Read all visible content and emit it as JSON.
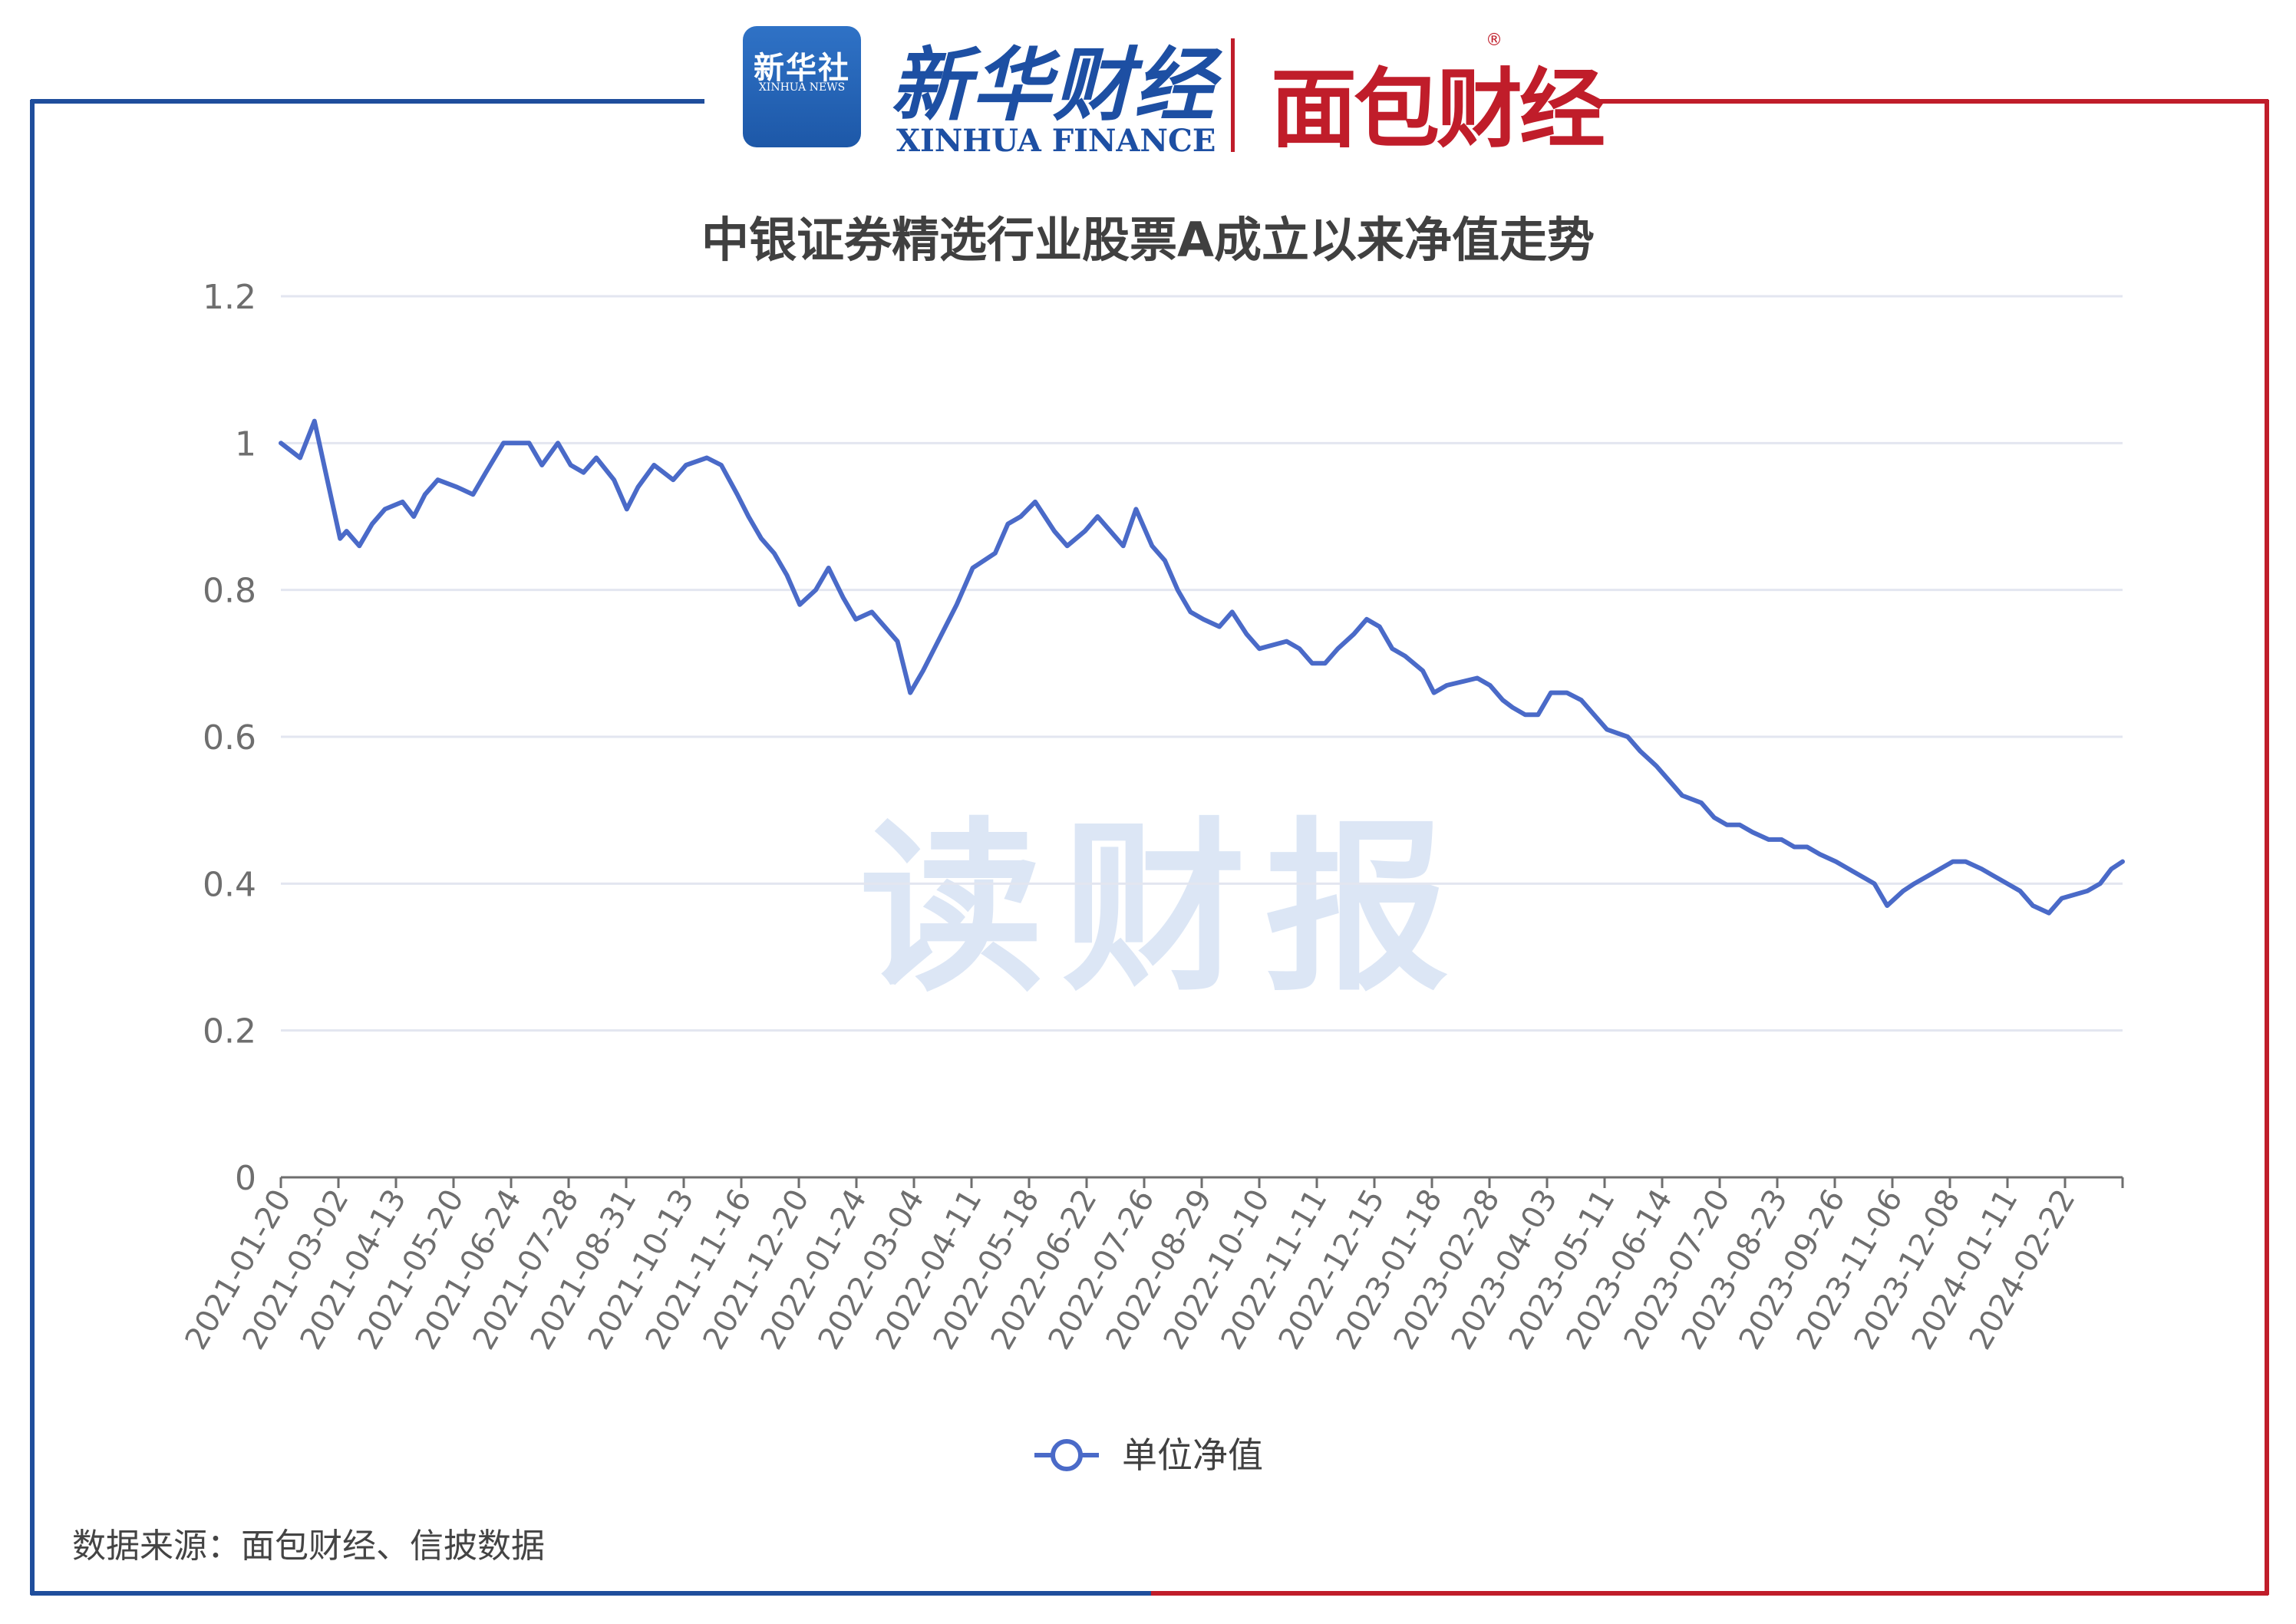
{
  "header": {
    "logo1_cn": "新华社",
    "logo1_en": "XINHUA NEWS",
    "brand1_cn": "新华财经",
    "brand1_en": "XINHUA FINANCE",
    "brand2": "面包财经",
    "brand2_reg": "®"
  },
  "watermark": "读财报",
  "source": "数据来源：面包财经、信披数据",
  "colors": {
    "line": "#4a6ac8",
    "frame_blue": "#1f4e9c",
    "frame_red": "#c01d2a",
    "grid": "#e3e6f0"
  },
  "chart_data": {
    "type": "line",
    "title": "中银证券精选行业股票A成立以来净值走势",
    "xlabel": "",
    "ylabel": "",
    "ylim": [
      0,
      1.2
    ],
    "yticks": [
      "0",
      "0.2",
      "0.4",
      "0.6",
      "0.8",
      "1",
      "1.2"
    ],
    "grid": true,
    "legend": {
      "position": "bottom-center",
      "marker": "circle"
    },
    "x_tick_labels": [
      "2021-01-20",
      "2021-03-02",
      "2021-04-13",
      "2021-05-20",
      "2021-06-24",
      "2021-07-28",
      "2021-08-31",
      "2021-10-13",
      "2021-11-16",
      "2021-12-20",
      "2022-01-24",
      "2022-03-04",
      "2022-04-11",
      "2022-05-18",
      "2022-06-22",
      "2022-07-26",
      "2022-08-29",
      "2022-10-10",
      "2022-11-11",
      "2022-12-15",
      "2023-01-18",
      "2023-02-28",
      "2023-04-03",
      "2023-05-11",
      "2023-06-14",
      "2023-07-20",
      "2023-08-23",
      "2023-09-26",
      "2023-11-06",
      "2023-12-08",
      "2024-01-11",
      "2024-02-22"
    ],
    "series": [
      {
        "name": "单位净值",
        "x": [
          "2021-01-20",
          "2021-02-01",
          "2021-02-10",
          "2021-02-18",
          "2021-02-26",
          "2021-03-02",
          "2021-03-10",
          "2021-03-18",
          "2021-03-26",
          "2021-04-06",
          "2021-04-13",
          "2021-04-20",
          "2021-04-28",
          "2021-05-10",
          "2021-05-20",
          "2021-05-28",
          "2021-06-08",
          "2021-06-16",
          "2021-06-24",
          "2021-07-02",
          "2021-07-12",
          "2021-07-20",
          "2021-07-28",
          "2021-08-05",
          "2021-08-16",
          "2021-08-24",
          "2021-08-31",
          "2021-09-10",
          "2021-09-22",
          "2021-09-30",
          "2021-10-13",
          "2021-10-22",
          "2021-11-01",
          "2021-11-08",
          "2021-11-16",
          "2021-11-24",
          "2021-12-02",
          "2021-12-10",
          "2021-12-20",
          "2021-12-28",
          "2022-01-06",
          "2022-01-14",
          "2022-01-24",
          "2022-02-09",
          "2022-02-17",
          "2022-02-25",
          "2022-03-04",
          "2022-03-11",
          "2022-03-18",
          "2022-03-28",
          "2022-04-11",
          "2022-04-19",
          "2022-04-27",
          "2022-05-06",
          "2022-05-18",
          "2022-05-26",
          "2022-06-06",
          "2022-06-14",
          "2022-06-22",
          "2022-06-30",
          "2022-07-08",
          "2022-07-18",
          "2022-07-26",
          "2022-08-03",
          "2022-08-11",
          "2022-08-19",
          "2022-08-29",
          "2022-09-06",
          "2022-09-15",
          "2022-09-23",
          "2022-10-10",
          "2022-10-18",
          "2022-10-26",
          "2022-11-03",
          "2022-11-11",
          "2022-11-21",
          "2022-11-29",
          "2022-12-07",
          "2022-12-15",
          "2022-12-23",
          "2023-01-03",
          "2023-01-10",
          "2023-01-18",
          "2023-02-06",
          "2023-02-14",
          "2023-02-22",
          "2023-02-28",
          "2023-03-08",
          "2023-03-16",
          "2023-03-24",
          "2023-04-03",
          "2023-04-12",
          "2023-04-20",
          "2023-04-28",
          "2023-05-11",
          "2023-05-19",
          "2023-05-29",
          "2023-06-06",
          "2023-06-14",
          "2023-06-26",
          "2023-07-04",
          "2023-07-12",
          "2023-07-20",
          "2023-07-28",
          "2023-08-07",
          "2023-08-15",
          "2023-08-23",
          "2023-08-31",
          "2023-09-08",
          "2023-09-18",
          "2023-09-26",
          "2023-10-12",
          "2023-10-20",
          "2023-10-30",
          "2023-11-06",
          "2023-11-14",
          "2023-11-22",
          "2023-11-30",
          "2023-12-08",
          "2023-12-18",
          "2023-12-26",
          "2024-01-03",
          "2024-01-11",
          "2024-01-19",
          "2024-01-29",
          "2024-02-06",
          "2024-02-22",
          "2024-03-01",
          "2024-03-08",
          "2024-03-15"
        ],
        "values": [
          1.0,
          0.98,
          1.03,
          0.95,
          0.87,
          0.88,
          0.86,
          0.89,
          0.91,
          0.92,
          0.9,
          0.93,
          0.95,
          0.94,
          0.93,
          0.96,
          1.0,
          1.0,
          1.0,
          0.97,
          1.0,
          0.97,
          0.96,
          0.98,
          0.95,
          0.91,
          0.94,
          0.97,
          0.95,
          0.97,
          0.98,
          0.97,
          0.93,
          0.9,
          0.87,
          0.85,
          0.82,
          0.78,
          0.8,
          0.83,
          0.79,
          0.76,
          0.77,
          0.73,
          0.66,
          0.69,
          0.72,
          0.75,
          0.78,
          0.83,
          0.85,
          0.89,
          0.9,
          0.92,
          0.88,
          0.86,
          0.88,
          0.9,
          0.88,
          0.86,
          0.91,
          0.86,
          0.84,
          0.8,
          0.77,
          0.76,
          0.75,
          0.77,
          0.74,
          0.72,
          0.73,
          0.72,
          0.7,
          0.7,
          0.72,
          0.74,
          0.76,
          0.75,
          0.72,
          0.71,
          0.69,
          0.66,
          0.67,
          0.68,
          0.67,
          0.65,
          0.64,
          0.63,
          0.63,
          0.66,
          0.66,
          0.65,
          0.63,
          0.61,
          0.6,
          0.58,
          0.56,
          0.54,
          0.52,
          0.51,
          0.49,
          0.48,
          0.48,
          0.47,
          0.46,
          0.46,
          0.45,
          0.45,
          0.44,
          0.43,
          0.42,
          0.4,
          0.37,
          0.39,
          0.4,
          0.41,
          0.42,
          0.43,
          0.43,
          0.42,
          0.41,
          0.4,
          0.39,
          0.37,
          0.36,
          0.38,
          0.39,
          0.4,
          0.42,
          0.43
        ]
      }
    ]
  }
}
